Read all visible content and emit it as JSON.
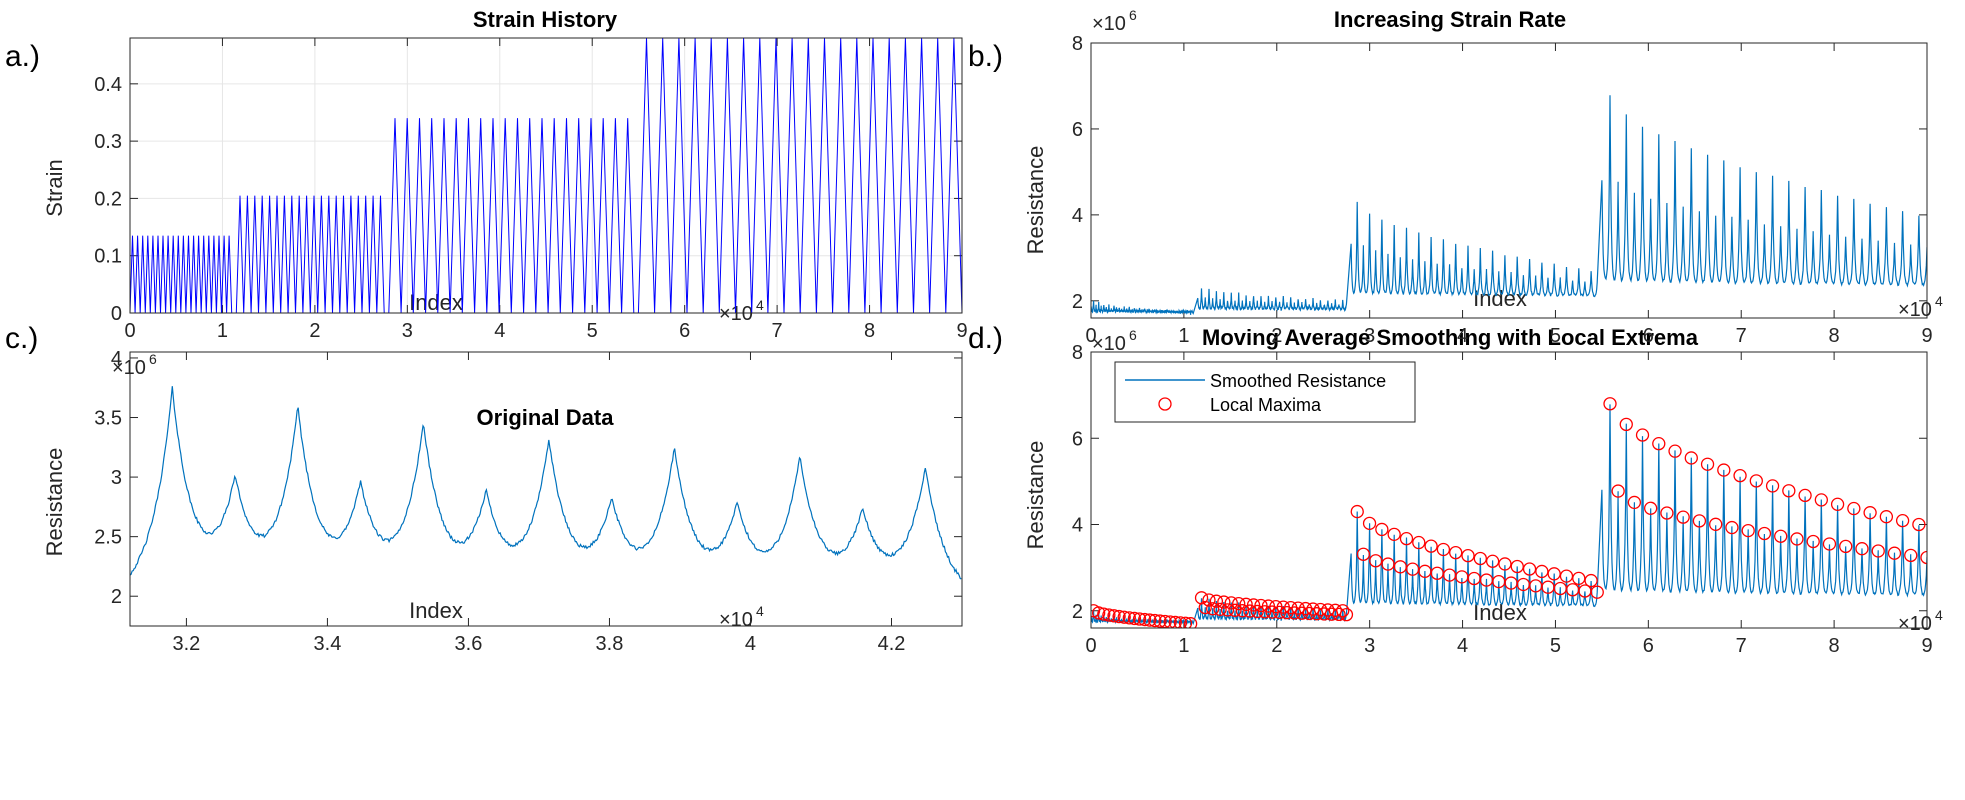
{
  "colors": {
    "blue_line": "#0000ff",
    "cyan_line": "#0072bd",
    "marker": "#ff0000",
    "grid": "#e6e6e6"
  },
  "chart_data": [
    {
      "id": "a",
      "type": "line",
      "panel_label": "a.)",
      "title": "Strain History",
      "xlabel": "Index",
      "ylabel": "Strain",
      "xlim": [
        0,
        9
      ],
      "ylim": [
        0,
        0.48
      ],
      "x_exponent": "×10^4",
      "x_ticks": [
        "0",
        "1",
        "2",
        "3",
        "4",
        "5",
        "6",
        "7",
        "8",
        "9"
      ],
      "y_ticks": [
        "0",
        "0.1",
        "0.2",
        "0.3",
        "0.4"
      ],
      "grid": true,
      "x_units": "×10^4 index",
      "segments": [
        {
          "x_start": 0.0,
          "x_end": 1.1,
          "amplitude": 0.135,
          "cycles": 20
        },
        {
          "x_start": 1.15,
          "x_end": 2.75,
          "amplitude": 0.205,
          "cycles": 20
        },
        {
          "x_start": 2.8,
          "x_end": 5.45,
          "amplitude": 0.34,
          "cycles": 20
        },
        {
          "x_start": 5.5,
          "x_end": 9.0,
          "amplitude": 0.48,
          "cycles": 20
        }
      ]
    },
    {
      "id": "b",
      "type": "line",
      "panel_label": "b.)",
      "title": "Increasing Strain Rate",
      "xlabel": "Index",
      "ylabel": "Resistance",
      "xlim": [
        0,
        9
      ],
      "ylim": [
        1.6,
        8
      ],
      "y_exponent": "×10^6",
      "x_exponent": "×10^4",
      "x_ticks": [
        "0",
        "1",
        "2",
        "3",
        "4",
        "5",
        "6",
        "7",
        "8",
        "9"
      ],
      "y_ticks": [
        "2",
        "4",
        "6",
        "8"
      ],
      "grid": false,
      "segments": [
        {
          "x_start": 0.0,
          "x_end": 1.1,
          "base": 1.75,
          "peak_start": 2.0,
          "peak_end": 1.7,
          "cycles": 20
        },
        {
          "x_start": 1.15,
          "x_end": 2.75,
          "base": 1.8,
          "peak_start": 2.3,
          "peak_end": 2.0,
          "cycles": 20
        },
        {
          "x_start": 2.8,
          "x_end": 5.45,
          "base": 2.1,
          "peak_start": 4.3,
          "peak_end": 2.7,
          "cycles": 20
        },
        {
          "x_start": 5.5,
          "x_end": 9.0,
          "base": 2.3,
          "peak_start": 6.8,
          "peak_end": 4.0,
          "cycles": 20
        }
      ]
    },
    {
      "id": "c",
      "type": "line",
      "panel_label": "c.)",
      "title": "Original Data",
      "xlabel": "Index",
      "ylabel": "Resistance",
      "xlim": [
        3.12,
        4.3
      ],
      "ylim": [
        1.75,
        4.05
      ],
      "y_exponent": "×10^6",
      "x_exponent": "×10^4",
      "x_tick_values": [
        3.2,
        3.4,
        3.6,
        3.8,
        4.0,
        4.2
      ],
      "x_ticks": [
        "3.2",
        "3.4",
        "3.6",
        "3.8",
        "4",
        "4.2"
      ],
      "y_tick_values": [
        2,
        2.5,
        3,
        3.5,
        4
      ],
      "y_ticks": [
        "2",
        "2.5",
        "3",
        "3.5",
        "4"
      ],
      "grid": false,
      "major_peaks": [
        {
          "x": 3.18,
          "y": 3.7
        },
        {
          "x": 3.358,
          "y": 3.5
        },
        {
          "x": 3.536,
          "y": 3.37
        },
        {
          "x": 3.714,
          "y": 3.24
        },
        {
          "x": 3.892,
          "y": 3.17
        },
        {
          "x": 4.07,
          "y": 3.1
        },
        {
          "x": 4.248,
          "y": 3.05
        }
      ],
      "minor_peaks": [
        {
          "x": 3.269,
          "y": 2.86
        },
        {
          "x": 3.447,
          "y": 2.82
        },
        {
          "x": 3.625,
          "y": 2.76
        },
        {
          "x": 3.803,
          "y": 2.71
        },
        {
          "x": 3.981,
          "y": 2.67
        },
        {
          "x": 4.159,
          "y": 2.63
        }
      ]
    },
    {
      "id": "d",
      "type": "line",
      "panel_label": "d.)",
      "title": "Moving Average Smoothing with Local Extrema",
      "xlabel": "Index",
      "ylabel": "Resistance",
      "xlim": [
        0,
        9
      ],
      "ylim": [
        1.6,
        8
      ],
      "y_exponent": "×10^6",
      "x_exponent": "×10^4",
      "x_ticks": [
        "0",
        "1",
        "2",
        "3",
        "4",
        "5",
        "6",
        "7",
        "8",
        "9"
      ],
      "y_ticks": [
        "2",
        "4",
        "6",
        "8"
      ],
      "grid": false,
      "legend": {
        "location": "top-left",
        "entries": [
          "Smoothed Resistance",
          "Local Maxima"
        ]
      },
      "series": [
        {
          "name": "Smoothed Resistance",
          "style": "line"
        },
        {
          "name": "Local Maxima",
          "style": "circle-markers"
        }
      ],
      "segments": [
        {
          "x_start": 0.0,
          "x_end": 1.1,
          "base": 1.75,
          "peak_start": 2.0,
          "peak_end": 1.7,
          "cycles": 20
        },
        {
          "x_start": 1.15,
          "x_end": 2.75,
          "base": 1.8,
          "peak_start": 2.3,
          "peak_end": 2.0,
          "cycles": 20
        },
        {
          "x_start": 2.8,
          "x_end": 5.45,
          "base": 2.1,
          "peak_start": 4.3,
          "peak_end": 2.7,
          "cycles": 20
        },
        {
          "x_start": 5.5,
          "x_end": 9.0,
          "base": 2.3,
          "peak_start": 6.8,
          "peak_end": 4.0,
          "cycles": 20
        }
      ]
    }
  ]
}
